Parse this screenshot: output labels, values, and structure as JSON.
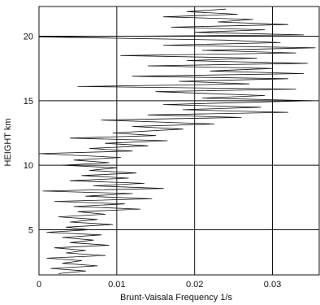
{
  "chart_data": {
    "type": "line",
    "title": "",
    "xlabel": "Brunt-Vaisala Frequency 1/s",
    "ylabel": "HEIGHT km",
    "xlim": [
      0,
      0.036
    ],
    "ylim": [
      1.5,
      22.3
    ],
    "x_ticks": [
      0,
      0.01,
      0.02,
      0.03
    ],
    "x_tick_labels": [
      "0",
      "0.01",
      "0.02",
      "0.03"
    ],
    "y_ticks": [
      5,
      10,
      15,
      20
    ],
    "y_tick_labels": [
      "5",
      "10",
      "15",
      "20"
    ],
    "grid": true,
    "legend": "none",
    "series": [
      {
        "points": [
          [
            0.0025,
            1.6
          ],
          [
            0.006,
            1.8
          ],
          [
            0.0015,
            2.0
          ],
          [
            0.0075,
            2.2
          ],
          [
            0.003,
            2.4
          ],
          [
            0.0055,
            2.6
          ],
          [
            0.001,
            2.8
          ],
          [
            0.0085,
            3.0
          ],
          [
            0.0035,
            3.2
          ],
          [
            0.006,
            3.4
          ],
          [
            0.002,
            3.6
          ],
          [
            0.009,
            3.8
          ],
          [
            0.004,
            4.0
          ],
          [
            0.007,
            4.2
          ],
          [
            0.003,
            4.4
          ],
          [
            0.008,
            4.6
          ],
          [
            0.001,
            4.8
          ],
          [
            0.0065,
            5.0
          ],
          [
            0.0035,
            5.2
          ],
          [
            0.0095,
            5.4
          ],
          [
            0.004,
            5.6
          ],
          [
            0.0075,
            5.8
          ],
          [
            0.0025,
            6.0
          ],
          [
            0.0085,
            6.2
          ],
          [
            0.005,
            6.4
          ],
          [
            0.013,
            6.6
          ],
          [
            0.0045,
            6.8
          ],
          [
            0.011,
            7.0
          ],
          [
            0.002,
            7.2
          ],
          [
            0.0145,
            7.4
          ],
          [
            0.006,
            7.6
          ],
          [
            0.012,
            7.8
          ],
          [
            0.0005,
            8.0
          ],
          [
            0.016,
            8.2
          ],
          [
            0.007,
            8.4
          ],
          [
            0.0135,
            8.6
          ],
          [
            0.004,
            8.8
          ],
          [
            0.0115,
            9.0
          ],
          [
            0.0055,
            9.2
          ],
          [
            0.0125,
            9.4
          ],
          [
            0.0065,
            9.6
          ],
          [
            0.01,
            9.8
          ],
          [
            0.003,
            10.0
          ],
          [
            0.009,
            10.2
          ],
          [
            0.0045,
            10.4
          ],
          [
            0.0105,
            10.6
          ],
          [
            0.0,
            10.9
          ],
          [
            0.012,
            11.1
          ],
          [
            0.0065,
            11.3
          ],
          [
            0.014,
            11.5
          ],
          [
            0.0085,
            11.7
          ],
          [
            0.0165,
            11.9
          ],
          [
            0.004,
            12.1
          ],
          [
            0.015,
            12.3
          ],
          [
            0.0095,
            12.5
          ],
          [
            0.0185,
            12.8
          ],
          [
            0.012,
            13.0
          ],
          [
            0.0225,
            13.2
          ],
          [
            0.008,
            13.5
          ],
          [
            0.026,
            13.7
          ],
          [
            0.014,
            13.9
          ],
          [
            0.032,
            14.1
          ],
          [
            0.0185,
            14.3
          ],
          [
            0.0285,
            14.5
          ],
          [
            0.016,
            14.7
          ],
          [
            0.035,
            15.0
          ],
          [
            0.021,
            15.2
          ],
          [
            0.029,
            15.4
          ],
          [
            0.015,
            15.7
          ],
          [
            0.033,
            15.9
          ],
          [
            0.005,
            16.1
          ],
          [
            0.027,
            16.3
          ],
          [
            0.018,
            16.5
          ],
          [
            0.032,
            16.7
          ],
          [
            0.012,
            16.9
          ],
          [
            0.034,
            17.1
          ],
          [
            0.022,
            17.3
          ],
          [
            0.03,
            17.5
          ],
          [
            0.014,
            17.7
          ],
          [
            0.0345,
            17.9
          ],
          [
            0.019,
            18.1
          ],
          [
            0.028,
            18.3
          ],
          [
            0.0105,
            18.5
          ],
          [
            0.033,
            18.7
          ],
          [
            0.021,
            18.9
          ],
          [
            0.0355,
            19.1
          ],
          [
            0.016,
            19.3
          ],
          [
            0.031,
            19.5
          ],
          [
            0.024,
            19.7
          ],
          [
            0.0,
            19.95
          ],
          [
            0.034,
            20.1
          ],
          [
            0.02,
            20.3
          ],
          [
            0.029,
            20.5
          ],
          [
            0.017,
            20.7
          ],
          [
            0.032,
            20.9
          ],
          [
            0.023,
            21.1
          ],
          [
            0.0275,
            21.3
          ],
          [
            0.016,
            21.5
          ],
          [
            0.0255,
            21.7
          ],
          [
            0.019,
            21.9
          ],
          [
            0.024,
            22.1
          ]
        ]
      }
    ]
  }
}
